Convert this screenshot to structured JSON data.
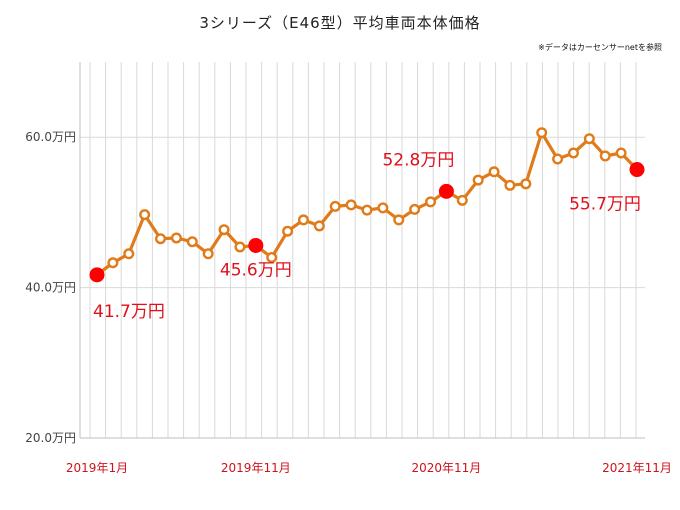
{
  "title": "3シリーズ（E46型）平均車両本体価格",
  "note": "※データはカーセンサーnetを参照",
  "colors": {
    "line": "#e07b1a",
    "highlight": "#ff0000",
    "label": "#e0101b",
    "grid": "#d9d9d9"
  },
  "chart_data": {
    "type": "line",
    "title": "3シリーズ（E46型）平均車両本体価格",
    "xlabel": "",
    "ylabel": "",
    "ylim": [
      20.0,
      70.0
    ],
    "y_ticks": [
      {
        "value": 20.0,
        "label": "20.0万円"
      },
      {
        "value": 40.0,
        "label": "40.0万円"
      },
      {
        "value": 60.0,
        "label": "60.0万円"
      }
    ],
    "x_tick_labels": [
      {
        "index": 0,
        "label": "2019年1月"
      },
      {
        "index": 10,
        "label": "2019年11月"
      },
      {
        "index": 22,
        "label": "2020年11月"
      },
      {
        "index": 34,
        "label": "2021年11月"
      }
    ],
    "grid": true,
    "legend": "none",
    "series": [
      {
        "values": [
          41.7,
          43.3,
          44.5,
          49.7,
          46.5,
          46.6,
          46.1,
          44.5,
          47.7,
          45.4,
          45.6,
          44.0,
          47.5,
          49.0,
          48.2,
          50.8,
          51.0,
          50.3,
          50.6,
          49.0,
          50.4,
          51.4,
          52.8,
          51.6,
          54.3,
          55.4,
          53.6,
          53.8,
          60.6,
          57.1,
          57.9,
          59.8,
          57.5,
          57.9,
          55.7
        ]
      }
    ],
    "highlights": [
      {
        "index": 0,
        "label": "41.7万円"
      },
      {
        "index": 10,
        "label": "45.6万円"
      },
      {
        "index": 22,
        "label": "52.8万円"
      },
      {
        "index": 34,
        "label": "55.7万円"
      }
    ]
  }
}
